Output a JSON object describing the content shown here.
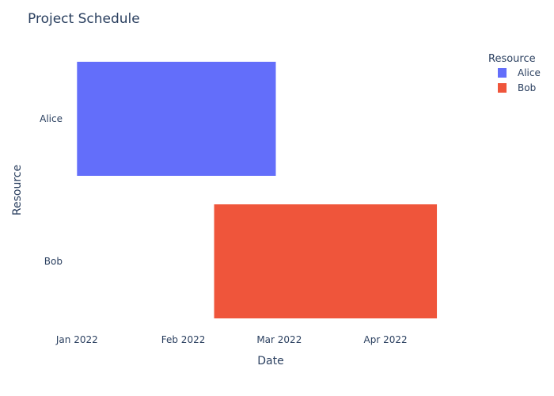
{
  "chart_data": {
    "type": "bar",
    "orientation": "horizontal",
    "title": "Project Schedule",
    "xlabel": "Date",
    "ylabel": "Resource",
    "x_axis_type": "date",
    "xlim": [
      "2021-12-28",
      "2022-04-28"
    ],
    "x_ticks": [
      {
        "value": "2022-01-01",
        "label": "Jan 2022"
      },
      {
        "value": "2022-02-01",
        "label": "Feb 2022"
      },
      {
        "value": "2022-03-01",
        "label": "Mar 2022"
      },
      {
        "value": "2022-04-01",
        "label": "Apr 2022"
      }
    ],
    "categories": [
      "Alice",
      "Bob"
    ],
    "series": [
      {
        "name": "Alice",
        "resource": "Alice",
        "start": "2022-01-01",
        "finish": "2022-02-28",
        "color": "#636efa"
      },
      {
        "name": "Bob",
        "resource": "Bob",
        "start": "2022-02-10",
        "finish": "2022-04-16",
        "color": "#ef553b"
      }
    ],
    "legend": {
      "title": "Resource",
      "position": "top-right"
    },
    "grid": false
  }
}
